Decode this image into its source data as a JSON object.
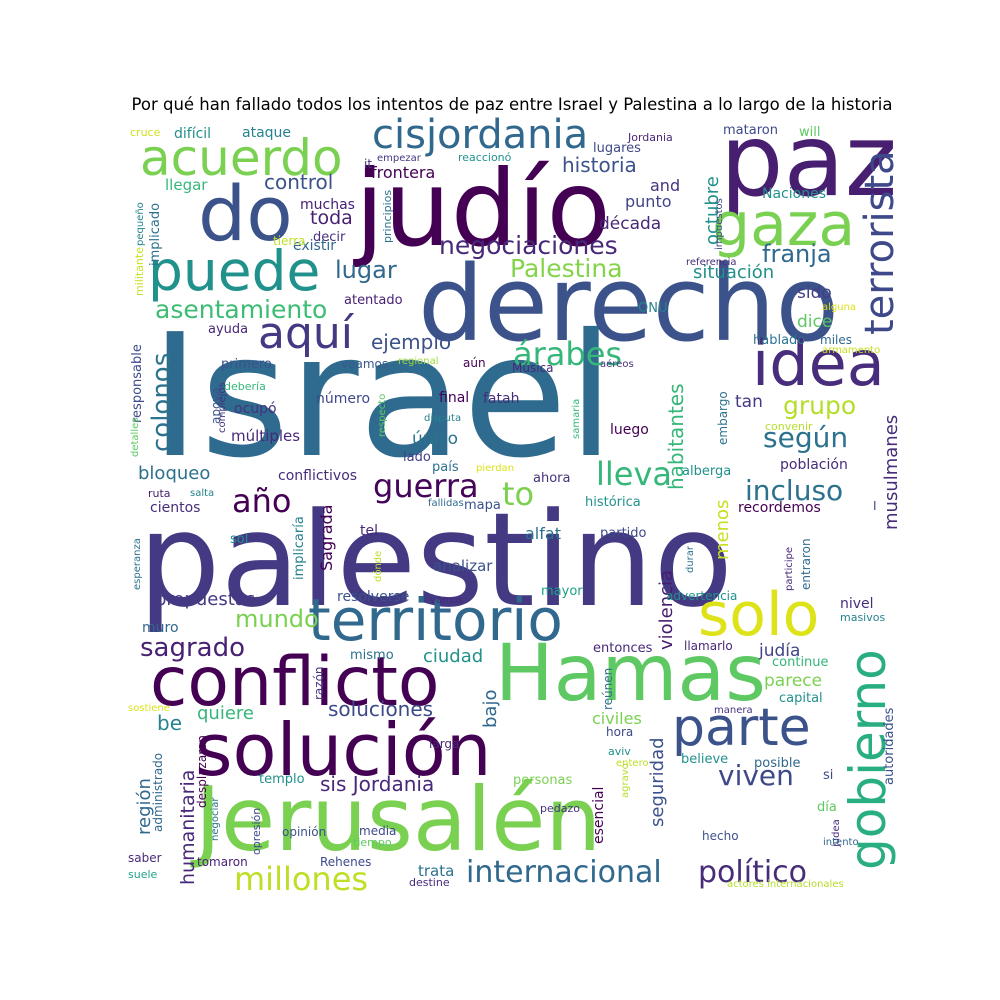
{
  "title": "Por qué han fallado todos los intentos de paz entre Israel y Palestina a lo largo de la historia",
  "words": [
    {
      "t": "Israel",
      "c": "#2f6b8e"
    },
    {
      "t": "palestino",
      "c": "#443983"
    },
    {
      "t": "Jerusalén",
      "c": "#7ad151"
    },
    {
      "t": "derecho",
      "c": "#3b528b"
    },
    {
      "t": "judío",
      "c": "#440154"
    },
    {
      "t": "paz",
      "c": "#481f70"
    },
    {
      "t": "Hamas",
      "c": "#5ec962"
    },
    {
      "t": "solución",
      "c": "#440154"
    },
    {
      "t": "conflicto",
      "c": "#440154"
    },
    {
      "t": "territorio",
      "c": "#31688e"
    },
    {
      "t": "do",
      "c": "#3b528b"
    },
    {
      "t": "puede",
      "c": "#21918c"
    },
    {
      "t": "idea",
      "c": "#472d7b"
    },
    {
      "t": "gaza",
      "c": "#7ad151"
    },
    {
      "t": "acuerdo",
      "c": "#7ad151"
    },
    {
      "t": "solo",
      "c": "#dde318"
    },
    {
      "t": "parte",
      "c": "#3b528b"
    },
    {
      "t": "gobierno",
      "c": "#28ae80"
    },
    {
      "t": "cisjordania",
      "c": "#31688e"
    },
    {
      "t": "terrorista",
      "c": "#3e4989"
    },
    {
      "t": "aquí",
      "c": "#443983"
    },
    {
      "t": "negociaciones",
      "c": "#482878"
    },
    {
      "t": "árabes",
      "c": "#35b779"
    },
    {
      "t": "colonos",
      "c": "#2c728e"
    },
    {
      "t": "asentamiento",
      "c": "#3dbc74"
    },
    {
      "t": "Palestina",
      "c": "#84d44b"
    },
    {
      "t": "guerra",
      "c": "#450559"
    },
    {
      "t": "año",
      "c": "#440154"
    },
    {
      "t": "to",
      "c": "#7ad151"
    },
    {
      "t": "lleva",
      "c": "#35b779"
    },
    {
      "t": "incluso",
      "c": "#2c728e"
    },
    {
      "t": "según",
      "c": "#2c728e"
    },
    {
      "t": "grupo",
      "c": "#b5de2b"
    },
    {
      "t": "millones",
      "c": "#bddf26"
    },
    {
      "t": "internacional",
      "c": "#31688e"
    },
    {
      "t": "político",
      "c": "#472c7a"
    },
    {
      "t": "viven",
      "c": "#3e4989"
    },
    {
      "t": "mundo",
      "c": "#7ad151"
    },
    {
      "t": "sagrado",
      "c": "#482173"
    },
    {
      "t": "historia",
      "c": "#3b528b"
    },
    {
      "t": "franja",
      "c": "#31688e"
    },
    {
      "t": "lugar",
      "c": "#31688e"
    },
    {
      "t": "ejemplo",
      "c": "#3b528b"
    },
    {
      "t": "habitantes",
      "c": "#35b779"
    },
    {
      "t": "musulmanes",
      "c": "#472c7a"
    },
    {
      "t": "sis Jordania",
      "c": "#482878"
    },
    {
      "t": "soluciones",
      "c": "#3e4989"
    },
    {
      "t": "humanitaria",
      "c": "#482878"
    },
    {
      "t": "control",
      "c": "#3b528b"
    },
    {
      "t": "toda",
      "c": "#481f70"
    },
    {
      "t": "octubre",
      "c": "#21918c"
    },
    {
      "t": "década",
      "c": "#482878"
    },
    {
      "t": "situación",
      "c": "#21918c"
    },
    {
      "t": "sido",
      "c": "#433e85"
    },
    {
      "t": "dice",
      "c": "#5ec962"
    },
    {
      "t": "único",
      "c": "#2c728e"
    },
    {
      "t": "bloqueo",
      "c": "#2c728e"
    },
    {
      "t": "ciudad",
      "c": "#21918c"
    },
    {
      "t": "quiere",
      "c": "#35b779"
    },
    {
      "t": "propuestas",
      "c": "#443983"
    },
    {
      "t": "violencia",
      "c": "#481b6d"
    },
    {
      "t": "judía",
      "c": "#414487"
    },
    {
      "t": "parece",
      "c": "#7ad151"
    },
    {
      "t": "civiles",
      "c": "#7ad151"
    },
    {
      "t": "bajo",
      "c": "#31688e"
    },
    {
      "t": "seguridad",
      "c": "#3b528b"
    },
    {
      "t": "menos",
      "c": "#c8e020"
    },
    {
      "t": "región",
      "c": "#31688e"
    },
    {
      "t": "be",
      "c": "#26828e"
    },
    {
      "t": "frontera",
      "c": "#440154"
    },
    {
      "t": "punto",
      "c": "#414487"
    },
    {
      "t": "and",
      "c": "#46327e"
    },
    {
      "t": "continue",
      "c": "#35b779"
    },
    {
      "t": "trata",
      "c": "#2c728e"
    },
    {
      "t": "difícil",
      "c": "#21918c"
    },
    {
      "t": "ataque",
      "c": "#26828e"
    },
    {
      "t": "mataron",
      "c": "#3e4989"
    },
    {
      "t": "will",
      "c": "#5ec962"
    },
    {
      "t": "lugares",
      "c": "#3e4989"
    },
    {
      "t": "Jordania",
      "c": "#482878"
    },
    {
      "t": "cruce",
      "c": "#d0e11c"
    },
    {
      "t": "empezar",
      "c": "#443983"
    },
    {
      "t": "reaccionó",
      "c": "#21918c"
    },
    {
      "t": "it",
      "c": "#46327e"
    },
    {
      "t": "llegar",
      "c": "#35b779"
    },
    {
      "t": "implicado",
      "c": "#2c728e"
    },
    {
      "t": "militante",
      "c": "#c8e020"
    },
    {
      "t": "pequeño",
      "c": "#26828e"
    },
    {
      "t": "muchas",
      "c": "#482173"
    },
    {
      "t": "decir",
      "c": "#46327e"
    },
    {
      "t": "existir",
      "c": "#31688e"
    },
    {
      "t": "tierra",
      "c": "#bddf26"
    },
    {
      "t": "principios",
      "c": "#2c728e"
    },
    {
      "t": "impuestos",
      "c": "#3e4989"
    },
    {
      "t": "Naciones",
      "c": "#21918c"
    },
    {
      "t": "referencia",
      "c": "#472c7a"
    },
    {
      "t": "alguna",
      "c": "#dde318"
    },
    {
      "t": "armamento",
      "c": "#c8e020"
    },
    {
      "t": "miles",
      "c": "#31688e"
    },
    {
      "t": "hablado",
      "c": "#2c728e"
    },
    {
      "t": "ONU",
      "c": "#26828e"
    },
    {
      "t": "atentado",
      "c": "#482173"
    },
    {
      "t": "ayuda",
      "c": "#482878"
    },
    {
      "t": "primero",
      "c": "#3b528b"
    },
    {
      "t": "veamos",
      "c": "#38598c"
    },
    {
      "t": "regional",
      "c": "#9fda3a"
    },
    {
      "t": "aún",
      "c": "#440154"
    },
    {
      "t": "Música",
      "c": "#482878"
    },
    {
      "t": "aéreos",
      "c": "#46327e"
    },
    {
      "t": "responsable",
      "c": "#3e4989"
    },
    {
      "t": "debería",
      "c": "#35b779"
    },
    {
      "t": "apoya",
      "c": "#3b528b"
    },
    {
      "t": "ocupó",
      "c": "#46327e"
    },
    {
      "t": "número",
      "c": "#3e4989"
    },
    {
      "t": "fatah",
      "c": "#472c7a"
    },
    {
      "t": "final",
      "c": "#440154"
    },
    {
      "t": "tan",
      "c": "#443983"
    },
    {
      "t": "embargo",
      "c": "#2c728e"
    },
    {
      "t": "convenir",
      "c": "#b5de2b"
    },
    {
      "t": "disputa",
      "c": "#26828e"
    },
    {
      "t": "luego",
      "c": "#440154"
    },
    {
      "t": "samaria",
      "c": "#35b779"
    },
    {
      "t": "respecto",
      "c": "#5ec962"
    },
    {
      "t": "múltiples",
      "c": "#482878"
    },
    {
      "t": "lado",
      "c": "#433e85"
    },
    {
      "t": "complejos",
      "c": "#46327e"
    },
    {
      "t": "detalles",
      "c": "#5ec962"
    },
    {
      "t": "conflictivos",
      "c": "#472c7a"
    },
    {
      "t": "país",
      "c": "#2c728e"
    },
    {
      "t": "pierdan",
      "c": "#dde318"
    },
    {
      "t": "ahora",
      "c": "#46327e"
    },
    {
      "t": "alberga",
      "c": "#21918c"
    },
    {
      "t": "población",
      "c": "#472c7a"
    },
    {
      "t": "ruta",
      "c": "#482173"
    },
    {
      "t": "salta",
      "c": "#26828e"
    },
    {
      "t": "cientos",
      "c": "#472c7a"
    },
    {
      "t": "fallidas",
      "c": "#31688e"
    },
    {
      "t": "mapa",
      "c": "#3b528b"
    },
    {
      "t": "histórica",
      "c": "#21918c"
    },
    {
      "t": "recordemos",
      "c": "#440154"
    },
    {
      "t": "I",
      "c": "#3e4989"
    },
    {
      "t": "Sagrada",
      "c": "#440154"
    },
    {
      "t": "tel",
      "c": "#482878"
    },
    {
      "t": "alfat",
      "c": "#2c728e"
    },
    {
      "t": "partido",
      "c": "#3e4989"
    },
    {
      "t": "sol",
      "c": "#21918c"
    },
    {
      "t": "implicaría",
      "c": "#26828e"
    },
    {
      "t": "dónde",
      "c": "#bddf26"
    },
    {
      "t": "analizar",
      "c": "#3b528b"
    },
    {
      "t": "esperanza",
      "c": "#2c728e"
    },
    {
      "t": "durar",
      "c": "#2c728e"
    },
    {
      "t": "participe",
      "c": "#482878"
    },
    {
      "t": "entraron",
      "c": "#31688e"
    },
    {
      "t": "vamos",
      "c": "#482878"
    },
    {
      "t": "resolverse",
      "c": "#3b528b"
    },
    {
      "t": "mayor",
      "c": "#1fa187"
    },
    {
      "t": "advertencia",
      "c": "#21918c"
    },
    {
      "t": "nivel",
      "c": "#472c7a"
    },
    {
      "t": "masivos",
      "c": "#26828e"
    },
    {
      "t": "muro",
      "c": "#31688e"
    },
    {
      "t": "entonces",
      "c": "#482878"
    },
    {
      "t": "razón",
      "c": "#443983"
    },
    {
      "t": "mismo",
      "c": "#2c728e"
    },
    {
      "t": "llamarlo",
      "c": "#482878"
    },
    {
      "t": "capital",
      "c": "#21918c"
    },
    {
      "t": "reúnen",
      "c": "#2c728e"
    },
    {
      "t": "sostiene",
      "c": "#dde318"
    },
    {
      "t": "manera",
      "c": "#46327e"
    },
    {
      "t": "autoridades",
      "c": "#3b528b"
    },
    {
      "t": "hora",
      "c": "#3e4989"
    },
    {
      "t": "larga",
      "c": "#482878"
    },
    {
      "t": "desplazaron",
      "c": "#440154"
    },
    {
      "t": "aviv",
      "c": "#21918c"
    },
    {
      "t": "believe",
      "c": "#21918c"
    },
    {
      "t": "administrado",
      "c": "#31688e"
    },
    {
      "t": "templo",
      "c": "#21918c"
    },
    {
      "t": "entero",
      "c": "#bddf26"
    },
    {
      "t": "posible",
      "c": "#31688e"
    },
    {
      "t": "personas",
      "c": "#7ad151"
    },
    {
      "t": "si",
      "c": "#3e4989"
    },
    {
      "t": "negociar",
      "c": "#2c728e"
    },
    {
      "t": "pedazo",
      "c": "#46327e"
    },
    {
      "t": "esencial",
      "c": "#440154"
    },
    {
      "t": "agravó",
      "c": "#b5de2b"
    },
    {
      "t": "día",
      "c": "#5ec962"
    },
    {
      "t": "opinión",
      "c": "#3b528b"
    },
    {
      "t": "media",
      "c": "#3e4989"
    },
    {
      "t": "tiempo",
      "c": "#5ec962"
    },
    {
      "t": "opresión",
      "c": "#3e4989"
    },
    {
      "t": "judea",
      "c": "#472c7a"
    },
    {
      "t": "hecho",
      "c": "#3b528b"
    },
    {
      "t": "intento",
      "c": "#31688e"
    },
    {
      "t": "saber",
      "c": "#472c7a"
    },
    {
      "t": "tomaron",
      "c": "#482173"
    },
    {
      "t": "Rehenes",
      "c": "#3e4989"
    },
    {
      "t": "suele",
      "c": "#1fa187"
    },
    {
      "t": "destine",
      "c": "#482878"
    },
    {
      "t": "actores internacionales",
      "c": "#b5de2b"
    }
  ]
}
